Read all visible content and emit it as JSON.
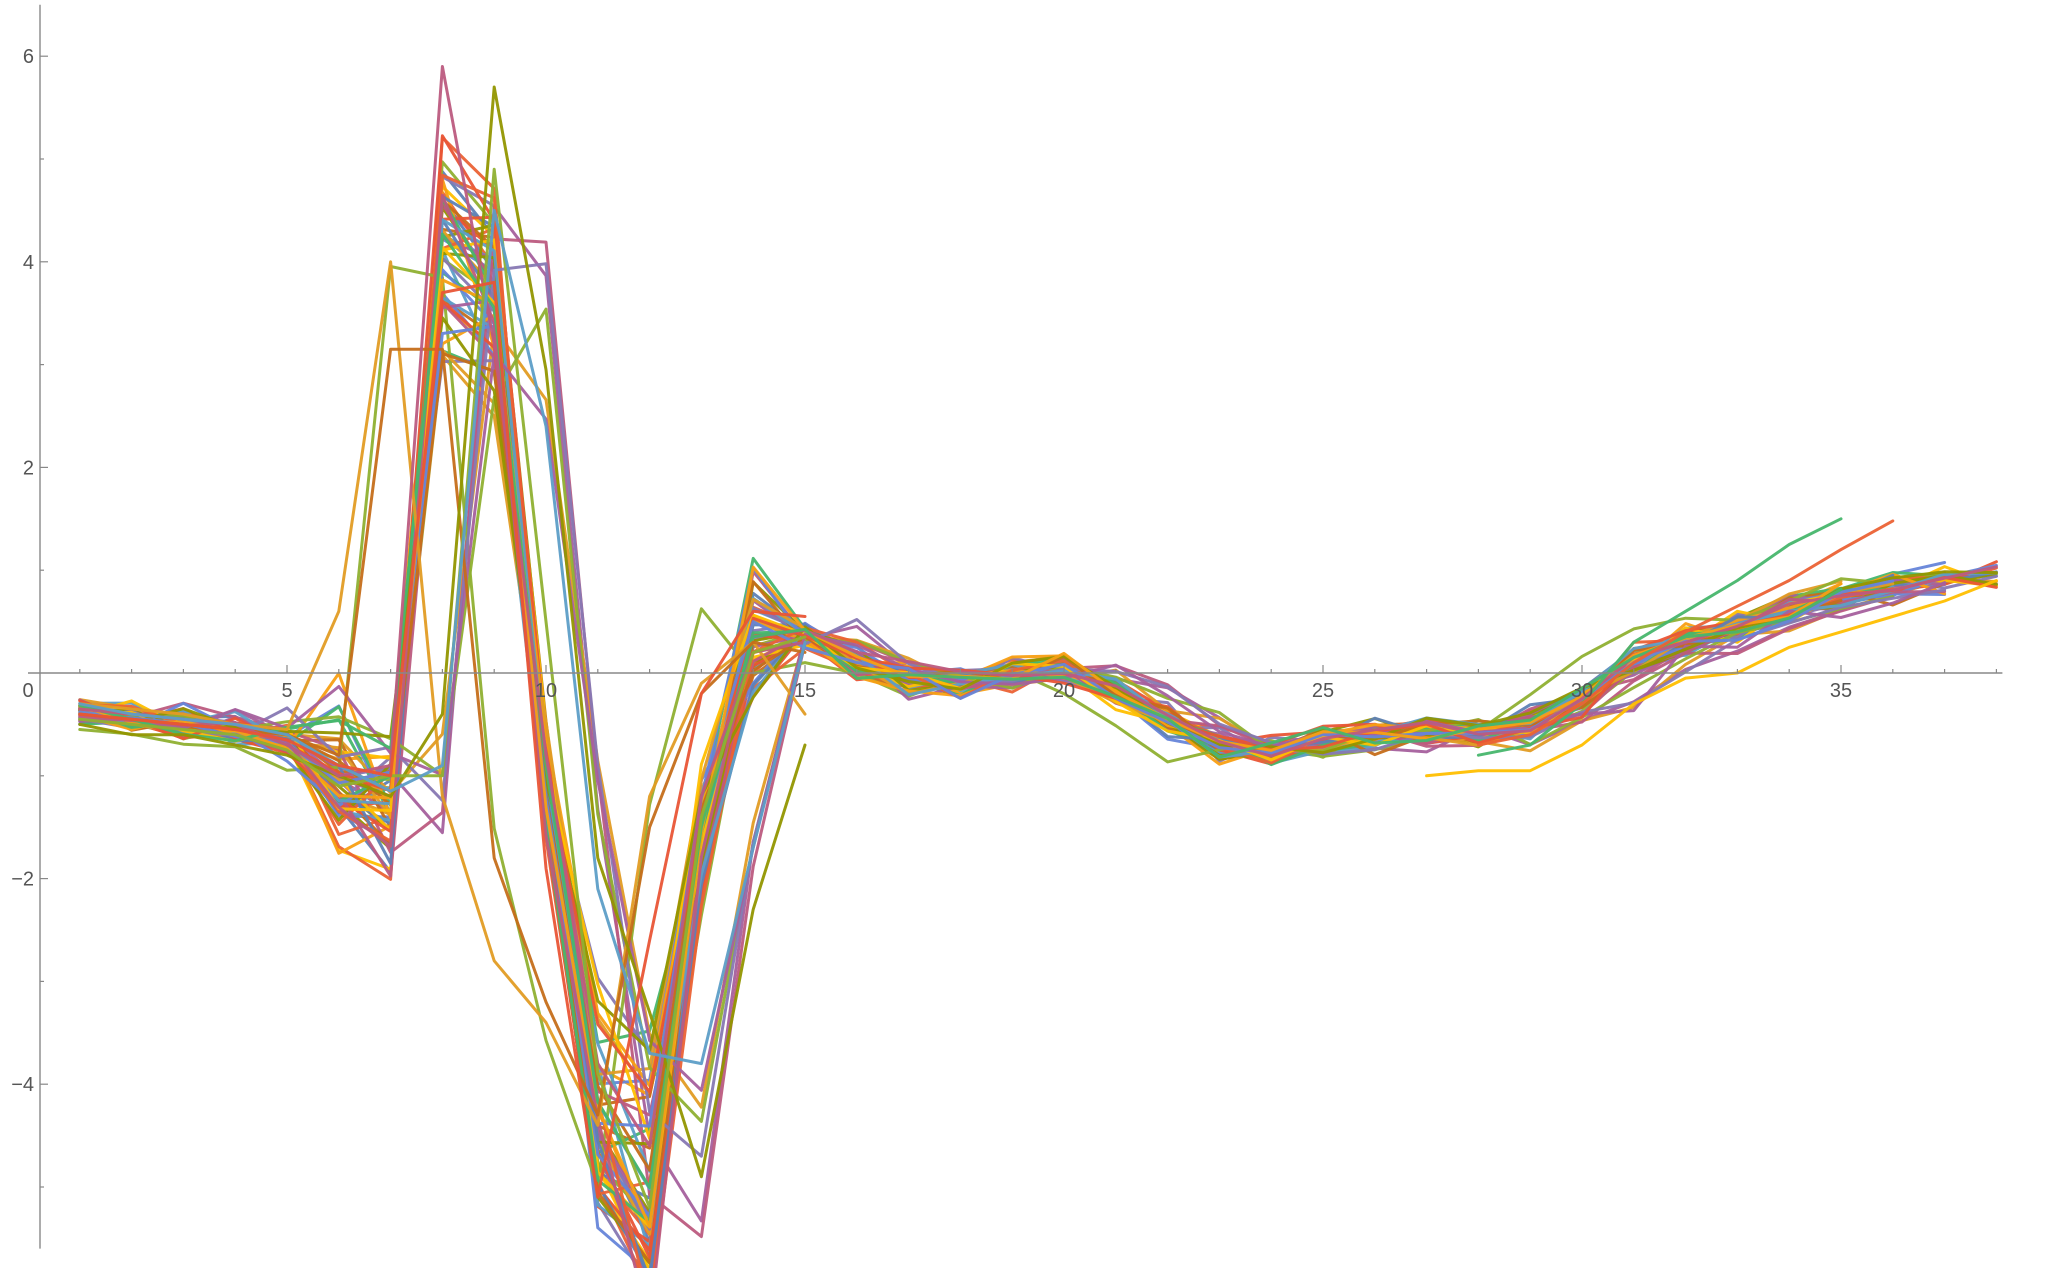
{
  "chart_data": {
    "type": "line",
    "title": "",
    "xlabel": "",
    "ylabel": "",
    "xlim": [
      0,
      38
    ],
    "ylim": [
      -5.6,
      6.5
    ],
    "grid": false,
    "legend": "none",
    "x_ticks": [
      0,
      5,
      10,
      15,
      20,
      25,
      30,
      35
    ],
    "x_tick_labels": [
      "0",
      "5",
      "10",
      "15",
      "20",
      "25",
      "30",
      "35"
    ],
    "y_ticks": [
      -4,
      -2,
      2,
      4,
      6
    ],
    "y_tick_labels": [
      "−4",
      "−2",
      "2",
      "4",
      "6"
    ],
    "palette": [
      "#5e81b5",
      "#e19c24",
      "#8fb032",
      "#eb6235",
      "#8778b3",
      "#c56e1a",
      "#5d9ec7",
      "#ffbf00",
      "#a5609d",
      "#929600",
      "#e95536",
      "#6685d9",
      "#f89f13",
      "#bc5b80",
      "#47b66d"
    ],
    "x": [
      1,
      2,
      3,
      4,
      5,
      6,
      7,
      8,
      9,
      10,
      11,
      12,
      13,
      14,
      15,
      16,
      17,
      18,
      19,
      20,
      21,
      22,
      23,
      24,
      25,
      26,
      27,
      28,
      29,
      30,
      31,
      32,
      33,
      34,
      35,
      36,
      37,
      38
    ],
    "base_series": {
      "x": [
        1,
        2,
        3,
        4,
        5,
        6,
        7,
        8,
        9,
        10,
        11,
        12,
        13,
        14,
        15,
        16,
        17,
        18,
        19,
        20,
        21,
        22,
        23,
        24,
        25,
        26,
        27,
        28,
        29,
        30,
        31,
        32,
        33,
        34,
        35,
        36,
        37,
        38
      ],
      "y": [
        -0.4,
        -0.45,
        -0.5,
        -0.55,
        -0.65,
        -0.9,
        -1.1,
        3.6,
        3.2,
        -0.9,
        -3.8,
        -4.4,
        -1.5,
        0.3,
        0.4,
        0.1,
        -0.05,
        -0.1,
        0.0,
        0.05,
        -0.2,
        -0.45,
        -0.7,
        -0.75,
        -0.65,
        -0.6,
        -0.55,
        -0.6,
        -0.5,
        -0.25,
        0.1,
        0.3,
        0.45,
        0.6,
        0.75,
        0.85,
        0.9,
        0.95
      ]
    },
    "series_count": 60,
    "highlighted_series": [
      {
        "x": [
          1,
          2,
          3,
          4,
          5,
          6,
          7,
          8,
          9,
          10,
          11,
          12,
          13,
          14,
          15
        ],
        "y": [
          -0.3,
          -0.35,
          -0.4,
          -0.5,
          -0.55,
          0.6,
          4.0,
          -1.2,
          -2.8,
          -3.4,
          -4.4,
          -1.2,
          -0.1,
          0.3,
          -0.4
        ]
      },
      {
        "x": [
          1,
          2,
          3,
          4,
          5,
          6,
          7,
          8,
          9,
          10,
          11,
          12,
          13,
          14,
          15
        ],
        "y": [
          -0.4,
          -0.45,
          -0.5,
          -0.55,
          -0.6,
          -0.8,
          3.15,
          3.15,
          -1.8,
          -3.2,
          -4.3,
          -1.5,
          -0.2,
          0.3,
          0.2
        ]
      },
      {
        "x": [
          1,
          2,
          3,
          4,
          5,
          6,
          7,
          8,
          9,
          10,
          11,
          12,
          13,
          14,
          15
        ],
        "y": [
          -0.5,
          -0.6,
          -0.6,
          -0.7,
          -0.8,
          -1.0,
          -1.2,
          -0.4,
          5.7,
          2.95,
          -1.8,
          -3.3,
          -4.9,
          -2.3,
          -0.7
        ]
      },
      {
        "x": [
          1,
          2,
          3,
          4,
          5,
          6,
          7,
          8,
          9,
          10,
          11,
          12,
          13,
          14,
          15
        ],
        "y": [
          -0.35,
          -0.4,
          -0.45,
          -0.5,
          -0.7,
          -1.0,
          -0.9,
          5.9,
          3.2,
          -0.8,
          -3.8,
          -4.6,
          -1.2,
          0.2,
          0.3
        ]
      },
      {
        "x": [
          1,
          2,
          3,
          4,
          5,
          6,
          7,
          8,
          9,
          10,
          11,
          12,
          13,
          14,
          15
        ],
        "y": [
          -0.45,
          -0.5,
          -0.55,
          -0.6,
          -0.75,
          -1.1,
          -1.0,
          -1.0,
          4.9,
          0.5,
          -3.9,
          -5.2,
          -1.4,
          0.2,
          0.35
        ]
      },
      {
        "x": [
          1,
          2,
          3,
          4,
          5,
          6,
          7,
          8,
          9,
          10,
          11,
          12,
          13,
          14,
          15
        ],
        "y": [
          -0.3,
          -0.4,
          -0.45,
          -0.5,
          -0.6,
          -0.9,
          -1.15,
          -0.9,
          4.5,
          2.4,
          -2.1,
          -3.7,
          -3.8,
          -1.7,
          0.3
        ]
      },
      {
        "x": [
          1,
          2,
          3,
          4,
          5,
          6,
          7,
          8,
          9,
          10,
          11,
          12,
          13,
          14,
          15
        ],
        "y": [
          -0.4,
          -0.45,
          -0.5,
          -0.55,
          -0.65,
          -0.9,
          -1.0,
          3.7,
          3.8,
          -1.9,
          -5.1,
          -2.6,
          -0.2,
          0.6,
          0.55
        ]
      },
      {
        "x": [
          28,
          29,
          30,
          31,
          32,
          33,
          34,
          35
        ],
        "y": [
          -0.8,
          -0.7,
          -0.3,
          0.3,
          0.6,
          0.9,
          1.25,
          1.5
        ]
      },
      {
        "x": [
          28,
          29,
          30,
          31,
          32,
          33,
          34,
          35,
          36
        ],
        "y": [
          -0.7,
          -0.6,
          -0.3,
          0.1,
          0.4,
          0.65,
          0.9,
          1.2,
          1.48
        ]
      },
      {
        "x": [
          27,
          28,
          29,
          30,
          31,
          32,
          33,
          34,
          35,
          36,
          37,
          38
        ],
        "y": [
          -1.0,
          -0.95,
          -0.95,
          -0.7,
          -0.3,
          -0.05,
          0.0,
          0.25,
          0.4,
          0.55,
          0.7,
          0.9
        ]
      }
    ]
  }
}
